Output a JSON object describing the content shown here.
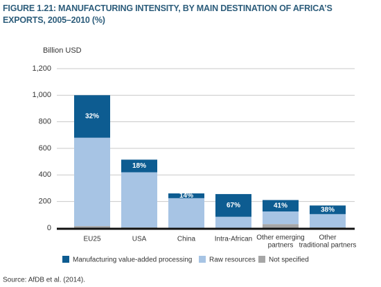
{
  "chart_data": {
    "type": "stacked_bar",
    "title": "FIGURE 1.21: MANUFACTURING INTENSITY, BY MAIN DESTINATION OF AFRICA’S EXPORTS, 2005–2010 (%)",
    "y_label": "Billion USD",
    "source": "Source: AfDB et al. (2014).",
    "categories": [
      "EU25",
      "USA",
      "China",
      "Intra-African",
      [
        "Other emerging",
        "partners"
      ],
      [
        "Other",
        "traditional partners"
      ]
    ],
    "series": [
      {
        "name": "Not specified",
        "color": "#a6a6a6",
        "values": [
          15,
          5,
          3,
          3,
          30,
          5
        ]
      },
      {
        "name": "Raw resources",
        "color": "#a7c4e4",
        "values": [
          665,
          415,
          222,
          82,
          95,
          100
        ]
      },
      {
        "name": "Manufacturing value-added processing",
        "color": "#0d5c91",
        "values": [
          320,
          95,
          36,
          171,
          86,
          65
        ]
      }
    ],
    "annotations": [
      "32%",
      "18%",
      "14%",
      "67%",
      "41%",
      "38%"
    ],
    "ylim": [
      0,
      1200
    ],
    "yticks": [
      0,
      200,
      400,
      600,
      800,
      {
        "value": 1000,
        "label": "1,000"
      },
      {
        "value": 1200,
        "label": "1,200"
      }
    ],
    "grid": true,
    "legend_order": [
      2,
      1,
      0
    ]
  }
}
